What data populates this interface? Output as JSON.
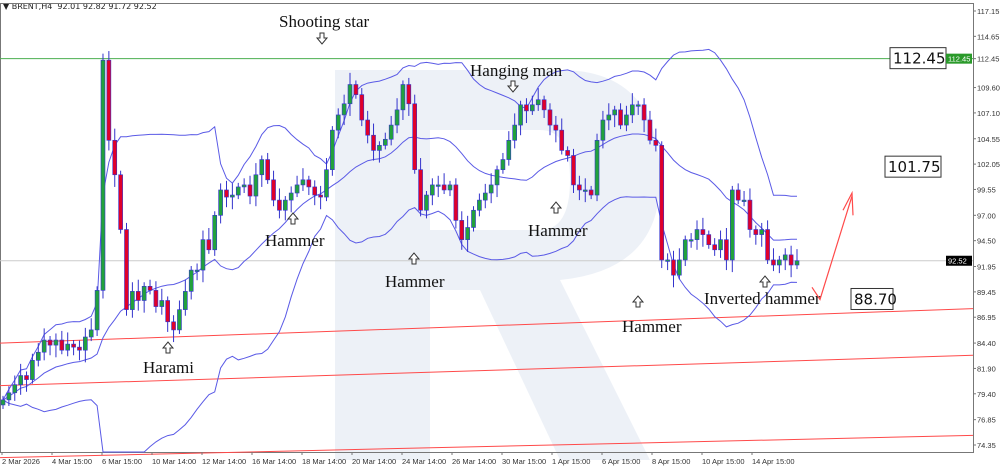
{
  "header": {
    "symbol": "BRENT,H4",
    "ohlc": "92.01 92.82 91.72 92.52",
    "dropdown_icon": "triangle-down-icon"
  },
  "colors": {
    "bull": "#22a23c",
    "bear": "#e0002a",
    "wick": "#3333cc",
    "bands": "#5a5ae6",
    "resistance": "#4caf50",
    "support": "#ff4a4a",
    "watermark": "#e6ebf3"
  },
  "chart_data": {
    "type": "candlestick",
    "timeframe": "H4",
    "ylim": [
      73.6,
      117.6
    ],
    "y_ticks": [
      "117.15",
      "114.65",
      "112.45",
      "109.60",
      "107.10",
      "104.55",
      "102.05",
      "99.55",
      "97.00",
      "94.50",
      "91.95",
      "89.45",
      "86.95",
      "84.40",
      "81.90",
      "79.40",
      "76.85",
      "74.35"
    ],
    "x_ticks": [
      "2 Mar 2026",
      "4 Mar 15:00",
      "6 Mar 15:00",
      "10 Mar 14:00",
      "12 Mar 14:00",
      "16 Mar 14:00",
      "18 Mar 14:00",
      "20 Mar 14:00",
      "24 Mar 14:00",
      "26 Mar 14:00",
      "30 Mar 15:00",
      "1 Apr 15:00",
      "6 Apr 15:00",
      "8 Apr 15:00",
      "10 Apr 15:00",
      "14 Apr 15:00"
    ],
    "closes": [
      78.8,
      79.5,
      80.3,
      81.2,
      80.8,
      82.7,
      83.5,
      84.7,
      84.2,
      84.7,
      83.7,
      84.3,
      84.0,
      83.7,
      85.0,
      85.7,
      89.6,
      112.3,
      104.4,
      101.0,
      95.6,
      87.7,
      89.5,
      88.6,
      90.0,
      89.6,
      88.0,
      88.6,
      86.5,
      85.7,
      87.7,
      89.5,
      91.6,
      91.6,
      94.6,
      93.6,
      97.0,
      99.5,
      98.8,
      99.0,
      99.8,
      100.0,
      98.9,
      101.0,
      102.5,
      100.5,
      98.5,
      97.5,
      98.5,
      99.2,
      100.0,
      100.5,
      99.8,
      99.0,
      98.8,
      101.5,
      105.4,
      106.9,
      108.0,
      109.9,
      108.9,
      106.4,
      104.9,
      103.4,
      103.9,
      104.5,
      105.9,
      107.4,
      109.9,
      108.0,
      101.5,
      97.5,
      99.0,
      100.0,
      100.0,
      99.5,
      100.0,
      96.5,
      94.6,
      95.8,
      97.5,
      98.5,
      99.2,
      100.0,
      101.5,
      102.5,
      104.4,
      105.9,
      107.9,
      107.3,
      107.9,
      108.4,
      107.4,
      105.9,
      105.4,
      103.4,
      102.9,
      100.0,
      99.5,
      99.5,
      99.0,
      104.4,
      106.4,
      106.9,
      107.4,
      105.9,
      106.9,
      107.9,
      107.9,
      106.4,
      104.4,
      103.9,
      92.6,
      92.6,
      91.1,
      92.6,
      94.6,
      94.6,
      95.6,
      95.1,
      94.1,
      93.6,
      94.6,
      92.6,
      99.5,
      98.5,
      98.5,
      95.6,
      95.1,
      95.6,
      92.6,
      92.1,
      92.6,
      93.1,
      92.1,
      92.52
    ],
    "indicators": {
      "bollinger_bands": {
        "period": 20,
        "deviations": 2
      }
    },
    "current_price": "92.52",
    "resistance_level": "112.45",
    "levels": [
      {
        "label": "112.45",
        "value": 112.45
      },
      {
        "label": "101.75",
        "value": 101.75
      },
      {
        "label": "88.70",
        "value": 88.7
      }
    ],
    "support_lines": [
      [
        84.4,
        87.8
      ],
      [
        80.2,
        83.2
      ],
      [
        73.1,
        75.3
      ]
    ],
    "annotations": [
      {
        "text": "Shooting star",
        "candle": 59,
        "dir": "down"
      },
      {
        "text": "Hammer",
        "candle": 49,
        "dir": "up"
      },
      {
        "text": "Hammer",
        "candle": 71,
        "dir": "up"
      },
      {
        "text": "Hanging man",
        "candle": 89,
        "dir": "down"
      },
      {
        "text": "Hammer",
        "candle": 96,
        "dir": "up"
      },
      {
        "text": "Harami",
        "candle": 28,
        "dir": "up"
      },
      {
        "text": "Hammer",
        "candle": 110,
        "dir": "up"
      },
      {
        "text": "Inverted hammer",
        "candle": 132,
        "dir": "up"
      }
    ],
    "forecast_arrow": {
      "from": 88.7,
      "to": 99.0
    }
  }
}
